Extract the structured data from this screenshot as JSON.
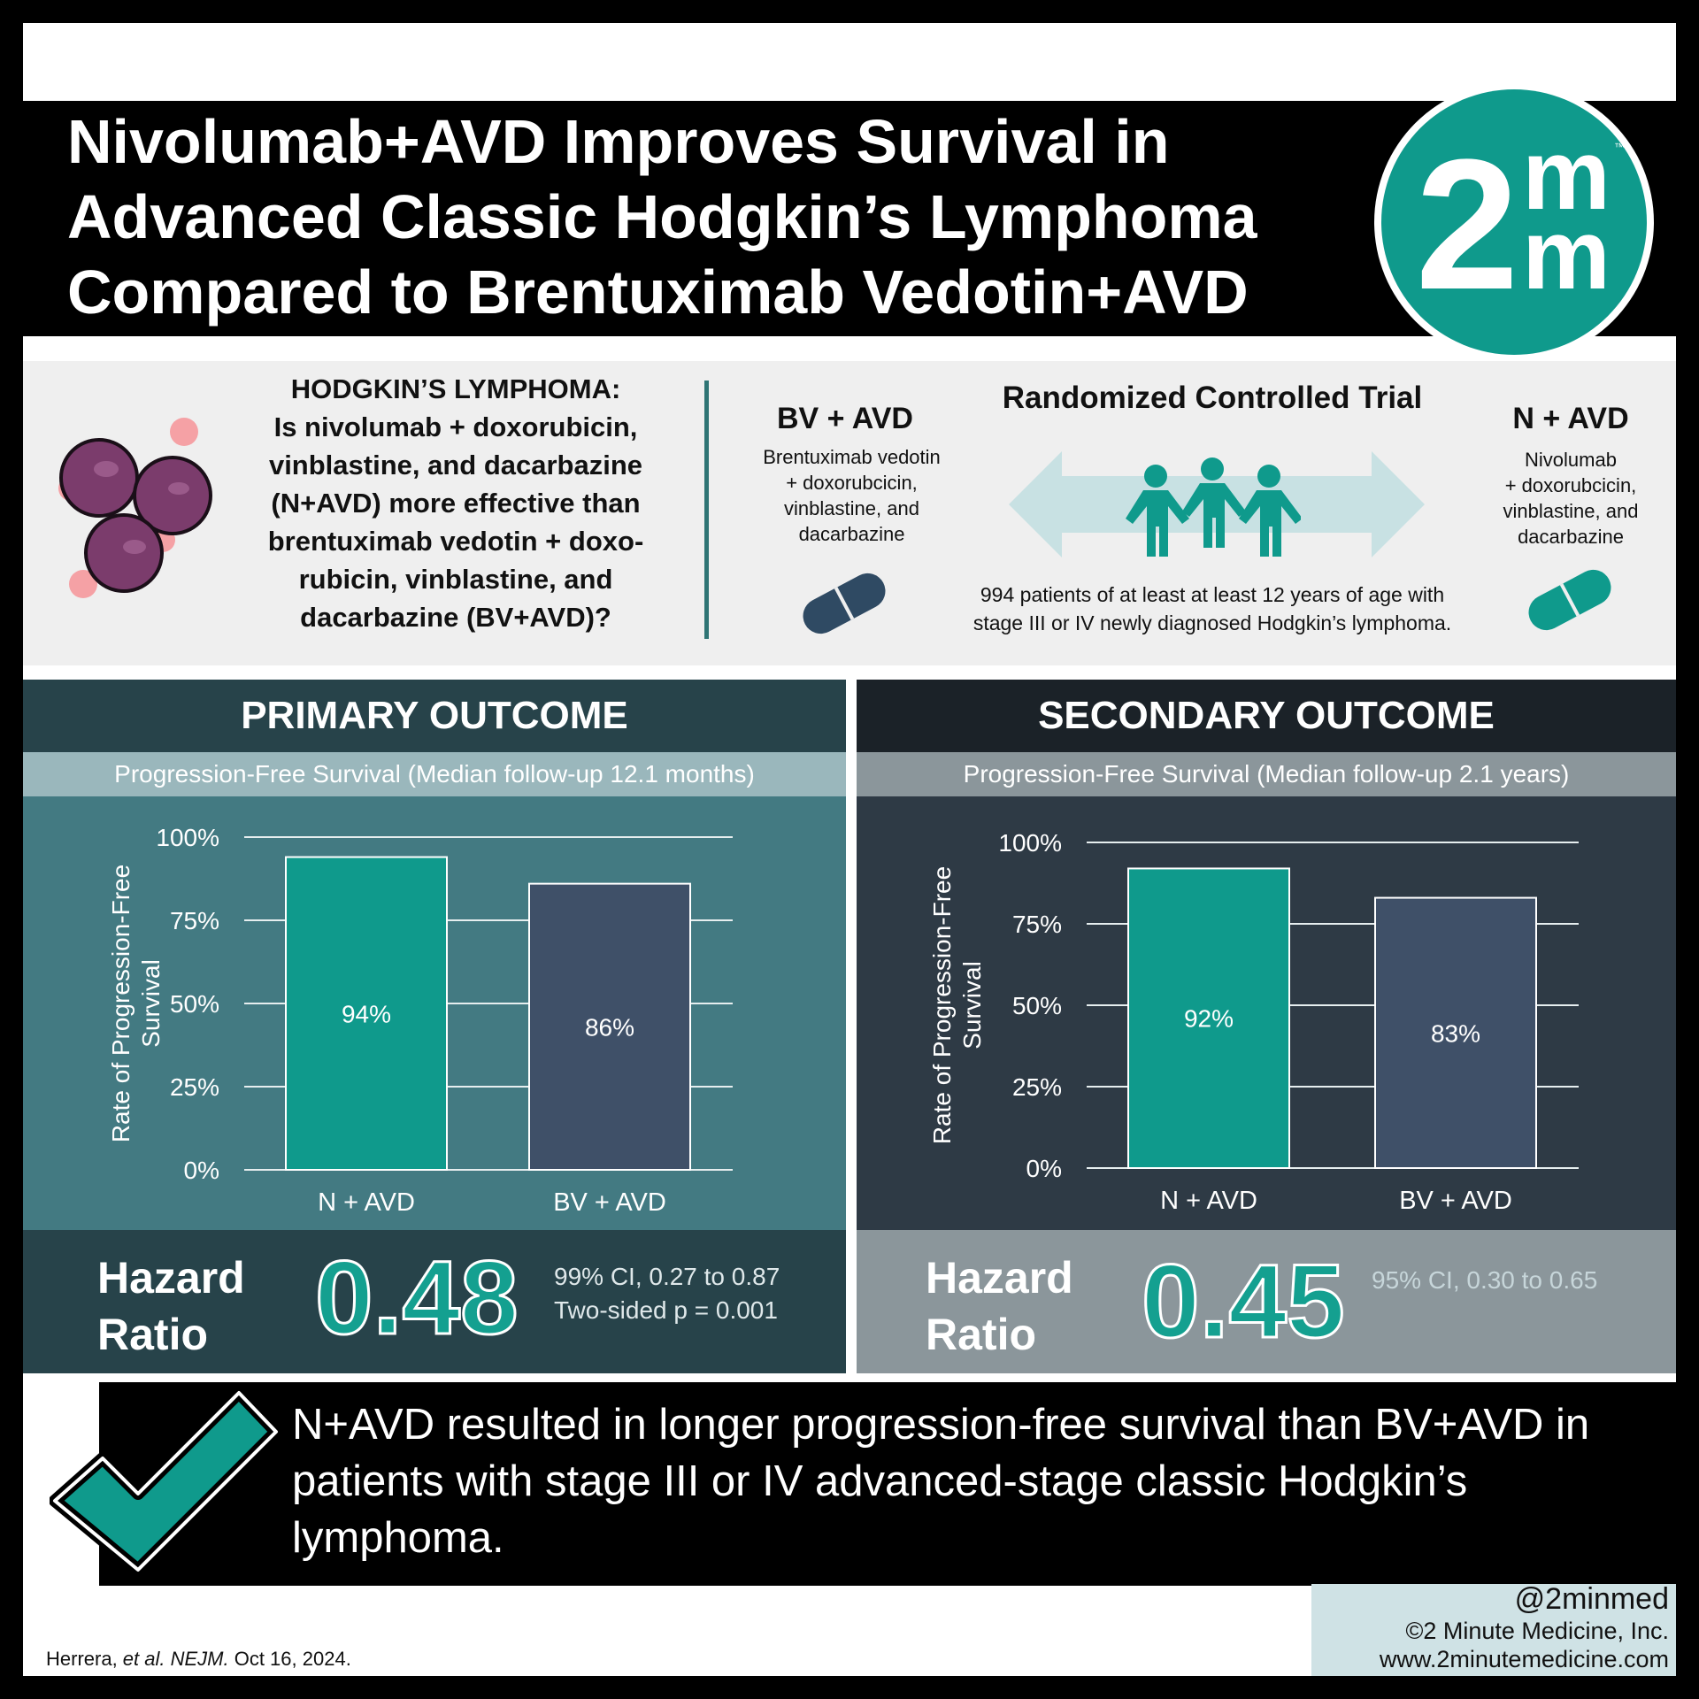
{
  "title": "Nivolumab+AVD Improves Survival in\nAdvanced Classic Hodgkin’s Lymphoma\nCompared to Brentuximab Vedotin+AVD",
  "logo": {
    "main": "2",
    "top": "m",
    "bottom": "m",
    "tm": "™",
    "color": "#0f9a8c"
  },
  "question": "HODGKIN’S LYMPHOMA:\nIs nivolumab + doxorubicin,\nvinblastine, and dacarbazine\n(N+AVD) more effective than\nbrentuximab vedotin + doxo-\nrubicin, vinblastine, and\ndacarbazine (BV+AVD)?",
  "trial": {
    "design": "Randomized Controlled Trial",
    "arm_left": {
      "label": "BV + AVD",
      "desc": "Brentuximab vedotin\n+ doxorubcicin,\nvinblastine, and\ndacarbazine"
    },
    "arm_right": {
      "label": "N + AVD",
      "desc": "Nivolumab\n+ doxorubcicin,\nvinblastine, and\ndacarbazine"
    },
    "patients": "994 patients of at least at least 12 years of age with\nstage III or IV newly diagnosed Hodgkin’s lymphoma."
  },
  "colors": {
    "teal": "#0f9a8c",
    "slate": "#3f5068",
    "primary_head": "#27434a",
    "primary_sub": "#9ab7bc",
    "primary_chart": "#437a82",
    "secondary_head": "#1b2228",
    "secondary_sub": "#8b969b",
    "secondary_chart": "#2e3a45"
  },
  "primary": {
    "heading": "PRIMARY OUTCOME",
    "subheading": "Progression-Free Survival (Median follow-up 12.1 months)",
    "hr_label": "Hazard\nRatio",
    "hr_value": "0.48",
    "hr_note": "99% CI, 0.27 to 0.87\nTwo-sided p = 0.001"
  },
  "secondary": {
    "heading": "SECONDARY OUTCOME",
    "subheading": "Progression-Free Survival (Median follow-up 2.1 years)",
    "hr_label": "Hazard\nRatio",
    "hr_value": "0.45",
    "hr_note": "95% CI, 0.30 to 0.65"
  },
  "chart_data": [
    {
      "type": "bar",
      "title": "",
      "ylabel": "Rate of Progression-Free Survival",
      "ylim": [
        0,
        100
      ],
      "yticks": [
        "0%",
        "25%",
        "50%",
        "75%",
        "100%"
      ],
      "categories": [
        "N + AVD",
        "BV + AVD"
      ],
      "values": [
        94,
        86
      ],
      "data_labels": [
        "94%",
        "86%"
      ],
      "grid": true
    },
    {
      "type": "bar",
      "title": "",
      "ylabel": "Rate of Progression-Free Survival",
      "ylim": [
        0,
        100
      ],
      "yticks": [
        "0%",
        "25%",
        "50%",
        "75%",
        "100%"
      ],
      "categories": [
        "N + AVD",
        "BV + AVD"
      ],
      "values": [
        92,
        83
      ],
      "data_labels": [
        "92%",
        "83%"
      ],
      "grid": true
    }
  ],
  "conclusion": "N+AVD resulted in longer progression-free survival than BV+AVD in patients with stage III or IV advanced-stage classic Hodgkin’s lymphoma.",
  "footer": {
    "handle": "@2minmed",
    "copyright": "©2 Minute Medicine, Inc.",
    "website": "www.2minutemedicine.com",
    "citation_authors": "Herrera, ",
    "citation_etal": "et al. NEJM.",
    "citation_date": " Oct 16, 2024."
  }
}
